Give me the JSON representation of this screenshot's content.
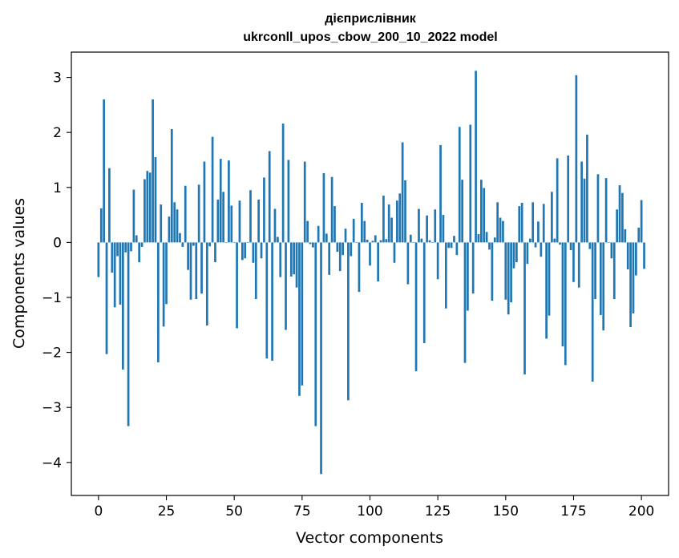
{
  "chart_data": {
    "type": "bar",
    "title_line1": "дієприслівник",
    "title_line2": "ukrconll_upos_cbow_200_10_2022 model",
    "xlabel": "Vector components",
    "ylabel": "Components values",
    "xlim": [
      -10,
      210
    ],
    "ylim": [
      -4.6,
      3.46
    ],
    "xticks": [
      0,
      25,
      50,
      75,
      100,
      125,
      150,
      175,
      200
    ],
    "yticks": [
      -4,
      -3,
      -2,
      -1,
      0,
      1,
      2,
      3
    ],
    "ytick_labels": [
      "−4",
      "−3",
      "−2",
      "−1",
      "0",
      "1",
      "2",
      "3"
    ],
    "bar_color": "#1f77b4",
    "grid": false,
    "values": [
      -0.63,
      0.62,
      2.6,
      -2.03,
      1.35,
      -0.55,
      -1.18,
      -0.25,
      -1.13,
      -2.31,
      -0.18,
      -3.34,
      -0.16,
      0.96,
      0.13,
      -0.36,
      -0.08,
      1.15,
      1.3,
      1.27,
      2.6,
      1.55,
      -2.18,
      0.69,
      -1.53,
      -1.12,
      0.47,
      2.06,
      0.73,
      0.6,
      0.17,
      -0.08,
      1.03,
      -0.5,
      -1.04,
      -0.06,
      -1.03,
      1.05,
      -0.93,
      1.47,
      -1.51,
      -0.07,
      1.92,
      -0.36,
      0.78,
      1.52,
      0.92,
      0.0,
      1.49,
      0.67,
      0.0,
      -1.56,
      0.76,
      -0.32,
      -0.29,
      0.0,
      0.95,
      -0.37,
      -1.03,
      0.78,
      -0.29,
      1.18,
      -2.11,
      1.66,
      -2.15,
      0.61,
      0.1,
      -0.63,
      2.16,
      -1.59,
      1.5,
      -0.62,
      -0.58,
      -0.82,
      -2.79,
      -2.6,
      1.47,
      0.39,
      -0.03,
      -0.09,
      -3.34,
      0.3,
      -4.21,
      1.26,
      0.16,
      -0.59,
      1.19,
      0.66,
      -0.17,
      -0.52,
      -0.23,
      0.25,
      -2.87,
      -0.25,
      0.43,
      0.0,
      -0.9,
      0.72,
      0.39,
      0.05,
      -0.42,
      0.03,
      0.13,
      -0.71,
      0.04,
      0.85,
      0.06,
      0.69,
      0.45,
      -0.37,
      0.76,
      0.89,
      1.82,
      1.13,
      -0.76,
      0.14,
      0.0,
      -2.34,
      0.61,
      0.07,
      -1.83,
      0.49,
      0.04,
      0.0,
      0.6,
      -0.67,
      1.77,
      0.5,
      -1.2,
      -0.1,
      -0.1,
      0.12,
      -0.23,
      2.1,
      1.14,
      -2.19,
      -1.24,
      2.14,
      -0.93,
      3.12,
      0.15,
      1.14,
      0.99,
      0.19,
      -0.13,
      -1.06,
      0.09,
      0.73,
      0.45,
      0.39,
      -1.04,
      -1.31,
      -1.09,
      -0.47,
      -0.36,
      0.66,
      0.72,
      -2.4,
      -0.39,
      0.07,
      0.73,
      -0.09,
      0.38,
      -0.26,
      0.7,
      -1.75,
      -1.33,
      0.92,
      0.07,
      1.53,
      -0.04,
      -1.89,
      -2.23,
      1.58,
      -0.14,
      -0.72,
      3.04,
      -0.82,
      1.47,
      1.16,
      1.96,
      -0.12,
      -2.53,
      -1.03,
      1.24,
      -1.32,
      -1.6,
      1.17,
      0.0,
      -0.29,
      -1.03,
      0.6,
      1.04,
      0.9,
      0.24,
      -0.49,
      -1.54,
      -1.29,
      -0.6,
      0.27,
      0.77,
      -0.48
    ]
  }
}
